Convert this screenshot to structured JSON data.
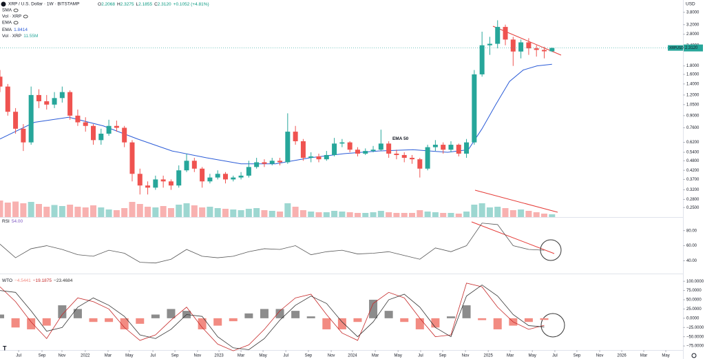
{
  "header": {
    "symbol": "XRP / U.S. Dollar · 1W · BITSTAMP",
    "ohlc": [
      [
        "O",
        "2.2068"
      ],
      [
        "H",
        "2.3275"
      ],
      [
        "L",
        "2.1855"
      ],
      [
        "C",
        "2.3120"
      ]
    ],
    "change": "+0.1052 (+4.81%)",
    "indicators": [
      "SMA",
      "Vol · XRP",
      "EMA"
    ],
    "ema_label": "EMA",
    "ema_value": "1.8414",
    "vol_label": "Vol · XRP",
    "vol_value": "11.55M",
    "currency": "USD",
    "tag_symbol": "XRPUSD",
    "tag_price": "2.3120"
  },
  "chart_data": [
    {
      "type": "candlestick",
      "log_scale": true,
      "colors": {
        "up": "#26a69a",
        "down": "#ef5350"
      },
      "x": [
        0,
        3,
        6,
        9,
        12,
        15,
        18,
        21,
        24,
        27,
        30,
        33,
        36,
        39,
        42,
        45,
        48,
        51,
        54,
        57,
        60,
        63,
        66,
        69,
        72,
        75,
        78,
        81,
        84,
        87,
        90,
        93,
        96,
        99,
        102,
        105,
        108,
        111,
        114,
        117,
        120,
        123,
        126,
        129,
        132,
        135,
        138,
        141,
        144,
        147,
        150,
        153,
        156,
        159,
        162,
        165,
        168,
        171,
        174,
        177,
        180,
        183,
        186,
        189,
        192,
        195,
        198,
        201,
        204,
        207,
        210,
        213
      ],
      "open": [
        1.55,
        1.35,
        0.95,
        0.75,
        0.62,
        1.2,
        1.1,
        1.05,
        1.15,
        1.25,
        0.9,
        0.82,
        0.78,
        0.64,
        0.7,
        0.78,
        0.76,
        0.62,
        0.4,
        0.34,
        0.33,
        0.37,
        0.36,
        0.34,
        0.42,
        0.48,
        0.43,
        0.36,
        0.38,
        0.4,
        0.37,
        0.38,
        0.39,
        0.44,
        0.47,
        0.46,
        0.48,
        0.47,
        0.72,
        0.63,
        0.5,
        0.51,
        0.49,
        0.52,
        0.61,
        0.62,
        0.56,
        0.53,
        0.55,
        0.56,
        0.61,
        0.53,
        0.52,
        0.5,
        0.49,
        0.43,
        0.58,
        0.6,
        0.56,
        0.6,
        0.53,
        0.62,
        1.6,
        2.4,
        2.45,
        3.1,
        2.6,
        2.2,
        2.5,
        2.3,
        2.25,
        2.2068
      ],
      "high": [
        1.7,
        1.4,
        1.0,
        0.8,
        1.35,
        1.3,
        1.2,
        1.25,
        1.35,
        1.28,
        0.98,
        0.88,
        0.8,
        0.75,
        0.85,
        0.84,
        0.78,
        0.64,
        0.43,
        0.36,
        0.39,
        0.39,
        0.37,
        0.45,
        0.53,
        0.5,
        0.44,
        0.4,
        0.42,
        0.41,
        0.39,
        0.41,
        0.48,
        0.5,
        0.49,
        0.5,
        0.5,
        0.93,
        0.78,
        0.65,
        0.54,
        0.53,
        0.55,
        0.66,
        0.65,
        0.63,
        0.58,
        0.57,
        0.59,
        0.74,
        0.63,
        0.56,
        0.54,
        0.52,
        0.5,
        0.6,
        0.64,
        0.62,
        0.63,
        0.61,
        0.65,
        1.7,
        2.9,
        2.7,
        3.4,
        3.2,
        2.7,
        2.6,
        2.65,
        2.4,
        2.35,
        2.3275
      ],
      "low": [
        1.25,
        0.9,
        0.7,
        0.55,
        0.6,
        1.0,
        0.98,
        1.0,
        1.08,
        0.85,
        0.78,
        0.72,
        0.6,
        0.6,
        0.68,
        0.72,
        0.58,
        0.36,
        0.3,
        0.3,
        0.32,
        0.33,
        0.32,
        0.33,
        0.41,
        0.41,
        0.33,
        0.35,
        0.37,
        0.35,
        0.36,
        0.37,
        0.38,
        0.43,
        0.44,
        0.45,
        0.45,
        0.46,
        0.6,
        0.48,
        0.47,
        0.47,
        0.48,
        0.51,
        0.58,
        0.54,
        0.51,
        0.52,
        0.54,
        0.55,
        0.5,
        0.49,
        0.47,
        0.46,
        0.38,
        0.42,
        0.55,
        0.53,
        0.54,
        0.51,
        0.5,
        0.6,
        1.55,
        2.1,
        2.3,
        2.4,
        1.8,
        2.0,
        2.1,
        2.05,
        2.0,
        2.1855
      ],
      "close": [
        1.35,
        0.95,
        0.75,
        0.62,
        1.2,
        1.1,
        1.05,
        1.15,
        1.25,
        0.9,
        0.82,
        0.78,
        0.64,
        0.7,
        0.78,
        0.76,
        0.62,
        0.4,
        0.34,
        0.33,
        0.37,
        0.36,
        0.34,
        0.42,
        0.48,
        0.43,
        0.36,
        0.38,
        0.4,
        0.37,
        0.38,
        0.39,
        0.44,
        0.47,
        0.46,
        0.48,
        0.47,
        0.72,
        0.63,
        0.5,
        0.51,
        0.49,
        0.52,
        0.61,
        0.62,
        0.56,
        0.53,
        0.55,
        0.56,
        0.61,
        0.53,
        0.52,
        0.5,
        0.49,
        0.43,
        0.58,
        0.6,
        0.56,
        0.6,
        0.53,
        0.62,
        1.6,
        2.4,
        2.45,
        3.1,
        2.6,
        2.2,
        2.5,
        2.3,
        2.25,
        2.2068,
        2.312
      ],
      "volume": {
        "ylim": [
          0,
          100
        ],
        "values": [
          48,
          42,
          45,
          40,
          44,
          38,
          30,
          35,
          32,
          36,
          30,
          28,
          34,
          28,
          22,
          20,
          26,
          44,
          38,
          30,
          28,
          32,
          26,
          36,
          40,
          34,
          28,
          30,
          26,
          24,
          22,
          20,
          24,
          26,
          20,
          18,
          16,
          40,
          30,
          20,
          16,
          14,
          14,
          18,
          16,
          14,
          12,
          12,
          14,
          18,
          14,
          12,
          12,
          12,
          20,
          16,
          14,
          12,
          12,
          10,
          16,
          36,
          40,
          28,
          30,
          26,
          20,
          22,
          18,
          14,
          10,
          8
        ]
      },
      "ema": {
        "name": "EMA 50",
        "color": "#2a5bd7",
        "x": [
          0,
          13.3,
          26.6,
          39.9,
          53.1,
          66.4,
          79.7,
          93,
          106.3,
          119.6,
          132.8,
          146.1,
          159.4,
          172.7,
          180.7,
          186,
          191.3,
          196.6,
          201.9,
          207.2,
          213
        ],
        "values": [
          0.65,
          0.82,
          0.88,
          0.78,
          0.65,
          0.55,
          0.5,
          0.46,
          0.46,
          0.5,
          0.53,
          0.55,
          0.56,
          0.54,
          0.56,
          0.75,
          1.05,
          1.45,
          1.7,
          1.8,
          1.8414
        ]
      },
      "xlim": [
        0,
        263
      ],
      "ylim": [
        0.219,
        4.3
      ],
      "yticks": [
        {
          "value": 3.8,
          "label": "3.8000"
        },
        {
          "value": 3.2,
          "label": "3.2000"
        },
        {
          "value": 2.8,
          "label": "2.8000"
        },
        {
          "value": 2.4,
          "label": "2.4000"
        },
        {
          "value": 1.8,
          "label": "1.8000"
        },
        {
          "value": 1.6,
          "label": "1.6000"
        },
        {
          "value": 1.4,
          "label": "1.4000"
        },
        {
          "value": 1.2,
          "label": "1.2000"
        },
        {
          "value": 1.05,
          "label": "1.0500"
        },
        {
          "value": 0.9,
          "label": "0.9000"
        },
        {
          "value": 0.76,
          "label": "0.7600"
        },
        {
          "value": 0.62,
          "label": "0.6200"
        },
        {
          "value": 0.54,
          "label": "0.5400"
        },
        {
          "value": 0.48,
          "label": "0.4800"
        },
        {
          "value": 0.42,
          "label": "0.4200"
        },
        {
          "value": 0.37,
          "label": "0.3700"
        },
        {
          "value": 0.32,
          "label": "0.3200"
        },
        {
          "value": 0.28,
          "label": "0.2800"
        },
        {
          "value": 0.25,
          "label": "0.2500"
        }
      ]
    },
    {
      "type": "line",
      "title": "RSI",
      "readout": "54.00",
      "color": "#555555",
      "x": [
        0,
        6,
        12,
        18,
        24,
        30,
        36,
        42,
        48,
        54,
        60,
        66,
        72,
        78,
        84,
        90,
        96,
        102,
        108,
        114,
        120,
        126,
        132,
        138,
        144,
        150,
        156,
        162,
        168,
        174,
        180,
        186,
        192,
        198,
        204,
        210
      ],
      "values": [
        62,
        44,
        56,
        60,
        55,
        48,
        46,
        54,
        50,
        38,
        37,
        42,
        55,
        46,
        44,
        46,
        52,
        56,
        55,
        60,
        48,
        52,
        54,
        49,
        50,
        52,
        47,
        42,
        57,
        52,
        60,
        90,
        88,
        60,
        55,
        54
      ],
      "xlim": [
        0,
        263
      ],
      "ylim": [
        23,
        98
      ],
      "yticks": [
        {
          "value": 80,
          "label": "80.00"
        },
        {
          "value": 60,
          "label": "60.00"
        },
        {
          "value": 40,
          "label": "40.00"
        }
      ]
    },
    {
      "type": "oscillator",
      "title": "WTO",
      "readout": [
        "−4.5441",
        "−19.1875",
        "−23.4684"
      ],
      "x": [
        0,
        6,
        12,
        18,
        24,
        30,
        36,
        42,
        48,
        54,
        60,
        66,
        72,
        78,
        84,
        90,
        96,
        102,
        108,
        114,
        120,
        126,
        132,
        138,
        144,
        150,
        156,
        162,
        168,
        174,
        180,
        186,
        192,
        198,
        204,
        210
      ],
      "histogram": {
        "up_color": "#8c8c8c",
        "down_color": "#f28b82",
        "values": [
          10,
          -25,
          -30,
          -20,
          35,
          25,
          -10,
          -10,
          -30,
          -15,
          10,
          25,
          20,
          -30,
          -20,
          -8,
          13,
          25,
          25,
          20,
          5,
          -30,
          -30,
          -10,
          50,
          20,
          -10,
          -30,
          -25,
          5,
          35,
          -5,
          -30,
          -20,
          -10,
          -4.5441
        ]
      },
      "series": [
        {
          "color": "#c62828",
          "values": [
            85,
            45,
            -10,
            -55,
            10,
            55,
            45,
            25,
            -25,
            -60,
            -45,
            -5,
            30,
            -25,
            -70,
            -88,
            -72,
            -30,
            20,
            55,
            65,
            10,
            -40,
            -60,
            40,
            70,
            55,
            0,
            -50,
            -45,
            95,
            85,
            30,
            -10,
            -30,
            -19.1875
          ]
        },
        {
          "color": "#333333",
          "values": [
            75,
            70,
            20,
            -35,
            -25,
            30,
            55,
            35,
            5,
            -45,
            -55,
            -30,
            10,
            5,
            -50,
            -80,
            -85,
            -55,
            -5,
            35,
            60,
            40,
            -10,
            -50,
            -10,
            50,
            65,
            30,
            -25,
            -50,
            60,
            90,
            60,
            10,
            -20,
            -23.4684
          ]
        }
      ],
      "xlim": [
        0,
        263
      ],
      "ylim": [
        -86,
        119
      ],
      "yticks": [
        {
          "value": 100,
          "label": "100.0000"
        },
        {
          "value": 75,
          "label": "75.0000"
        },
        {
          "value": 50,
          "label": "50.0000"
        },
        {
          "value": 25,
          "label": "25.0000"
        },
        {
          "value": 0,
          "label": "0.0000"
        },
        {
          "value": -25,
          "label": "−25.0000"
        },
        {
          "value": -50,
          "label": "−50.0000"
        },
        {
          "value": -75,
          "label": "−75.0000"
        }
      ],
      "xticks": [
        {
          "value": 7.2,
          "label": "Jul"
        },
        {
          "value": 16.2,
          "label": "Sep"
        },
        {
          "value": 23.9,
          "label": "Nov"
        },
        {
          "value": 32.9,
          "label": "2022"
        },
        {
          "value": 41.7,
          "label": "Mar"
        },
        {
          "value": 49.9,
          "label": "May"
        },
        {
          "value": 59,
          "label": "Jul"
        },
        {
          "value": 67.5,
          "label": "Sep"
        },
        {
          "value": 76.2,
          "label": "Nov"
        },
        {
          "value": 84.5,
          "label": "2023"
        },
        {
          "value": 93,
          "label": "Mar"
        },
        {
          "value": 101.5,
          "label": "May"
        },
        {
          "value": 110.3,
          "label": "Jul"
        },
        {
          "value": 119,
          "label": "Sep"
        },
        {
          "value": 127.8,
          "label": "Nov"
        },
        {
          "value": 136,
          "label": "2024"
        },
        {
          "value": 144.8,
          "label": "Mar"
        },
        {
          "value": 153.6,
          "label": "May"
        },
        {
          "value": 162.3,
          "label": "Jul"
        },
        {
          "value": 170.8,
          "label": "Sep"
        },
        {
          "value": 179.6,
          "label": "Nov"
        },
        {
          "value": 188.4,
          "label": "2025"
        },
        {
          "value": 196.9,
          "label": "Mar"
        },
        {
          "value": 205.4,
          "label": "May"
        },
        {
          "value": 214.1,
          "label": "Jul"
        },
        {
          "value": 222.6,
          "label": "Sep"
        },
        {
          "value": 231.4,
          "label": "Nov"
        },
        {
          "value": 239.9,
          "label": "2026"
        },
        {
          "value": 248.4,
          "label": "Mar"
        },
        {
          "value": 256.9,
          "label": "May"
        }
      ]
    }
  ]
}
